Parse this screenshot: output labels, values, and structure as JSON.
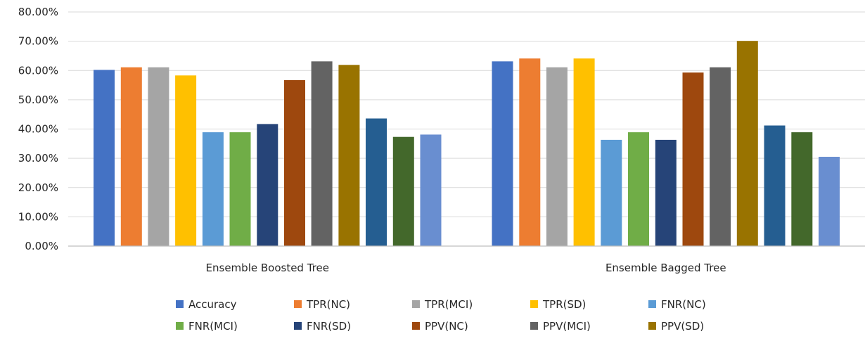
{
  "chart_data": {
    "type": "bar",
    "title": "",
    "xlabel": "",
    "ylabel": "",
    "ylim": [
      0,
      0.8
    ],
    "y_ticks": [
      "0.00%",
      "10.00%",
      "20.00%",
      "30.00%",
      "40.00%",
      "50.00%",
      "60.00%",
      "70.00%",
      "80.00%"
    ],
    "grid": true,
    "legend_position": "bottom",
    "categories": [
      "Ensemble Boosted Tree",
      "Ensemble Bagged Tree"
    ],
    "series": [
      {
        "name": "Accuracy",
        "color": "#4472C4",
        "values": [
          0.602,
          0.631
        ]
      },
      {
        "name": "TPR(NC)",
        "color": "#ED7D31",
        "values": [
          0.611,
          0.641
        ]
      },
      {
        "name": "TPR(MCI)",
        "color": "#A5A5A5",
        "values": [
          0.611,
          0.611
        ]
      },
      {
        "name": "TPR(SD)",
        "color": "#FFC000",
        "values": [
          0.583,
          0.641
        ]
      },
      {
        "name": "FNR(NC)",
        "color": "#5B9BD5",
        "values": [
          0.389,
          0.363
        ]
      },
      {
        "name": "FNR(MCI)",
        "color": "#70AD47",
        "values": [
          0.389,
          0.389
        ]
      },
      {
        "name": "FNR(SD)",
        "color": "#264478",
        "values": [
          0.417,
          0.363
        ]
      },
      {
        "name": "PPV(NC)",
        "color": "#9E480E",
        "values": [
          0.567,
          0.593
        ]
      },
      {
        "name": "PPV(MCI)",
        "color": "#636363",
        "values": [
          0.631,
          0.611
        ]
      },
      {
        "name": "PPV(SD)",
        "color": "#997300",
        "values": [
          0.619,
          0.701
        ]
      },
      {
        "name": "",
        "color": "#255E91",
        "values": [
          0.436,
          0.412
        ]
      },
      {
        "name": "",
        "color": "#43682B",
        "values": [
          0.373,
          0.389
        ]
      },
      {
        "name": "",
        "color": "#698ED0",
        "values": [
          0.381,
          0.305
        ]
      }
    ]
  }
}
